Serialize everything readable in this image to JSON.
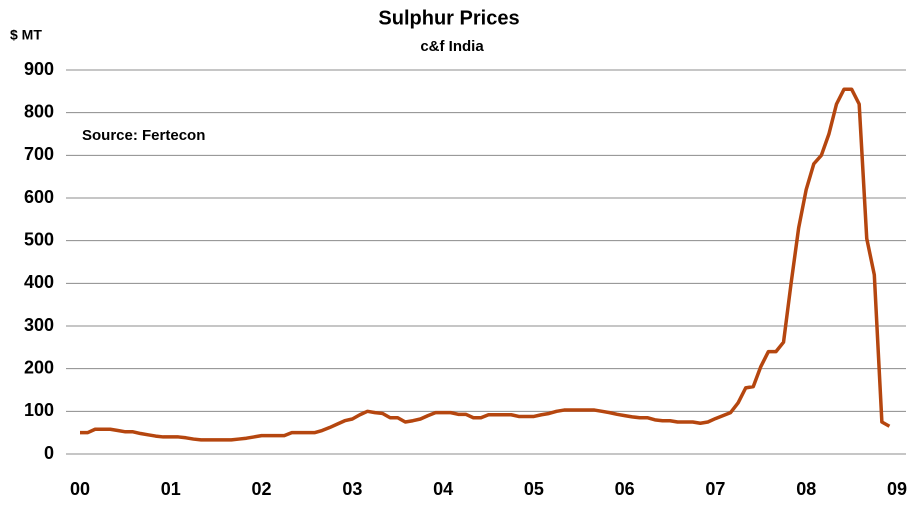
{
  "chart_data": {
    "type": "line",
    "title": "Sulphur Prices",
    "subtitle": "c&f India",
    "y_label": "$ MT",
    "annotation": "Source: Fertecon",
    "x": [
      0,
      1,
      2,
      3,
      4,
      5,
      6,
      7,
      8,
      9,
      10,
      11,
      12,
      13,
      14,
      15,
      16,
      17,
      18,
      19,
      20,
      21,
      22,
      23,
      24,
      25,
      26,
      27,
      28,
      29,
      30,
      31,
      32,
      33,
      34,
      35,
      36,
      37,
      38,
      39,
      40,
      41,
      42,
      43,
      44,
      45,
      46,
      47,
      48,
      49,
      50,
      51,
      52,
      53,
      54,
      55,
      56,
      57,
      58,
      59,
      60,
      61,
      62,
      63,
      64,
      65,
      66,
      67,
      68,
      69,
      70,
      71,
      72,
      73,
      74,
      75,
      76,
      77,
      78,
      79,
      80,
      81,
      82,
      83,
      84,
      85,
      86,
      87,
      88,
      89,
      90,
      91,
      92,
      93,
      94,
      95,
      96,
      97,
      98,
      99,
      100,
      101,
      102,
      103,
      104,
      105,
      106,
      107
    ],
    "series": [
      {
        "name": "Sulphur c&f India",
        "color": "#b5460f",
        "values": [
          50,
          50,
          58,
          58,
          58,
          55,
          52,
          52,
          48,
          45,
          42,
          40,
          40,
          40,
          38,
          35,
          33,
          33,
          33,
          33,
          33,
          35,
          37,
          40,
          43,
          43,
          43,
          43,
          50,
          50,
          50,
          50,
          55,
          62,
          70,
          78,
          82,
          92,
          100,
          97,
          95,
          85,
          85,
          75,
          78,
          82,
          90,
          97,
          97,
          97,
          93,
          93,
          85,
          85,
          92,
          92,
          92,
          92,
          88,
          88,
          88,
          92,
          95,
          100,
          103,
          103,
          103,
          103,
          103,
          100,
          97,
          93,
          90,
          87,
          85,
          85,
          80,
          78,
          78,
          75,
          75,
          75,
          72,
          75,
          83,
          90,
          97,
          120,
          155,
          158,
          205,
          240,
          240,
          262,
          400,
          530,
          620,
          680,
          700,
          750,
          820,
          855,
          855,
          820,
          505,
          420,
          75,
          65
        ]
      }
    ],
    "xlim": [
      0,
      108
    ],
    "xticks": [
      {
        "value": 0,
        "label": "00"
      },
      {
        "value": 12,
        "label": "01"
      },
      {
        "value": 24,
        "label": "02"
      },
      {
        "value": 36,
        "label": "03"
      },
      {
        "value": 48,
        "label": "04"
      },
      {
        "value": 60,
        "label": "05"
      },
      {
        "value": 72,
        "label": "06"
      },
      {
        "value": 84,
        "label": "07"
      },
      {
        "value": 96,
        "label": "08"
      },
      {
        "value": 108,
        "label": "09"
      }
    ],
    "ylim": [
      0,
      900
    ],
    "yticks": [
      0,
      100,
      200,
      300,
      400,
      500,
      600,
      700,
      800,
      900
    ],
    "grid": true
  }
}
